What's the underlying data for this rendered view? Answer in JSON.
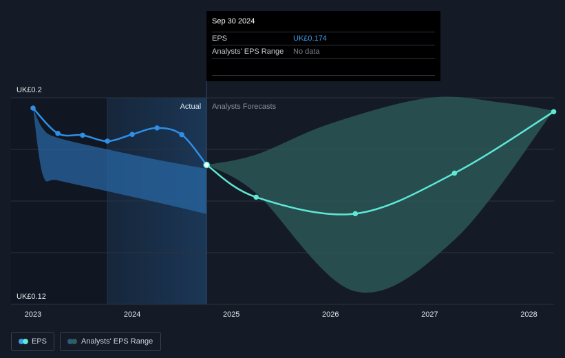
{
  "chart_data": {
    "type": "line",
    "y_axis": {
      "ticks": [
        "UK£0.2",
        "UK£0.12"
      ],
      "ylim": [
        0.12,
        0.2
      ],
      "grid": true
    },
    "x_axis": {
      "ticks": [
        "2023",
        "2024",
        "2025",
        "2026",
        "2027",
        "2028"
      ],
      "range": [
        2023.0,
        2028.25
      ]
    },
    "region_labels": {
      "actual": "Actual",
      "forecast": "Analysts Forecasts"
    },
    "actual_cutoff": 2024.75,
    "highlight_start": 2023.75,
    "series": [
      {
        "name": "EPS",
        "color": "#2e8fe8",
        "points": [
          {
            "x": 2023.0,
            "y": 0.196
          },
          {
            "x": 2023.25,
            "y": 0.1862
          },
          {
            "x": 2023.5,
            "y": 0.1855
          },
          {
            "x": 2023.75,
            "y": 0.1832
          },
          {
            "x": 2024.0,
            "y": 0.1858
          },
          {
            "x": 2024.25,
            "y": 0.1883
          },
          {
            "x": 2024.5,
            "y": 0.1857
          },
          {
            "x": 2024.75,
            "y": 0.174
          }
        ]
      },
      {
        "name": "EPS forecast",
        "color": "#5ee8d6",
        "points": [
          {
            "x": 2024.75,
            "y": 0.174
          },
          {
            "x": 2025.25,
            "y": 0.1615
          },
          {
            "x": 2026.25,
            "y": 0.1551
          },
          {
            "x": 2027.25,
            "y": 0.1708
          },
          {
            "x": 2028.25,
            "y": 0.1946
          }
        ]
      }
    ],
    "historical_range": {
      "color": "#2a6aa8",
      "upper": [
        [
          2023.0,
          0.196
        ],
        [
          2023.1,
          0.188
        ],
        [
          2023.25,
          0.1845
        ],
        [
          2023.75,
          0.18
        ],
        [
          2024.25,
          0.176
        ],
        [
          2024.75,
          0.1725
        ]
      ],
      "lower": [
        [
          2023.0,
          0.196
        ],
        [
          2023.1,
          0.17
        ],
        [
          2023.25,
          0.168
        ],
        [
          2023.75,
          0.1638
        ],
        [
          2024.25,
          0.1595
        ],
        [
          2024.75,
          0.155
        ]
      ]
    },
    "forecast_range": {
      "color": "#2e5f5c",
      "upper": [
        [
          2024.75,
          0.174
        ],
        [
          2025.25,
          0.178
        ],
        [
          2026.0,
          0.19
        ],
        [
          2027.0,
          0.2
        ],
        [
          2027.75,
          0.198
        ],
        [
          2028.25,
          0.195
        ]
      ],
      "lower": [
        [
          2024.75,
          0.174
        ],
        [
          2025.25,
          0.163
        ],
        [
          2026.25,
          0.125
        ],
        [
          2027.25,
          0.145
        ],
        [
          2028.25,
          0.195
        ]
      ]
    },
    "hover": {
      "x": 2024.75,
      "date": "Sep 30 2024",
      "eps_label": "EPS",
      "eps_value": "UK£0.174",
      "range_label": "Analysts' EPS Range",
      "range_value": "No data"
    },
    "legend": [
      {
        "label": "EPS",
        "colors": [
          "#3d9ae8",
          "#5ee8d6"
        ]
      },
      {
        "label": "Analysts' EPS Range",
        "colors": [
          "#2a5a86",
          "#2e5f5c"
        ]
      }
    ]
  }
}
